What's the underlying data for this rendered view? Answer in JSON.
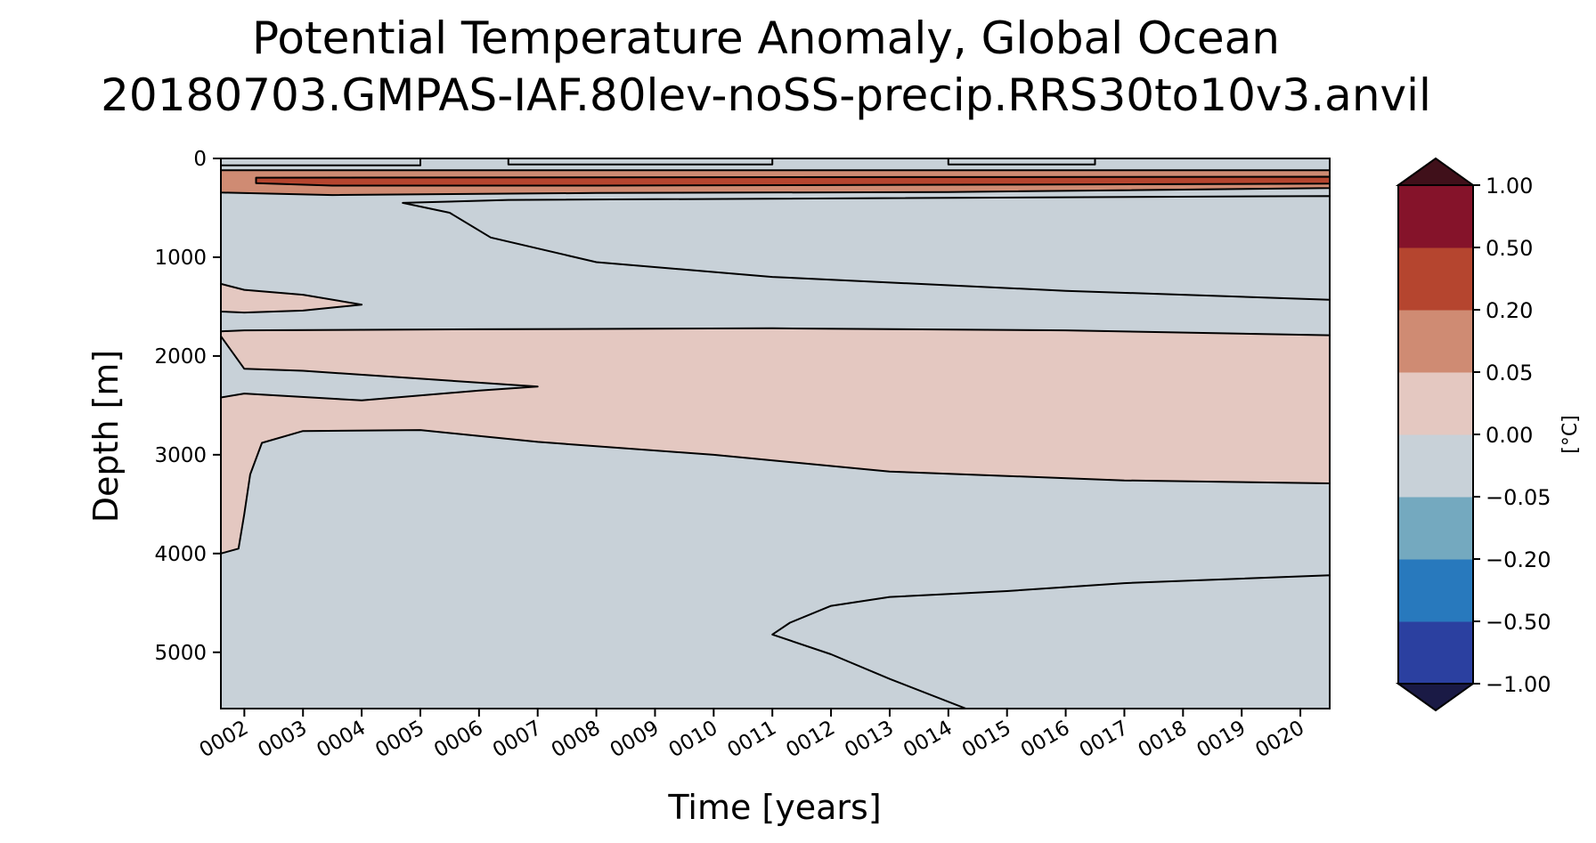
{
  "chart_data": {
    "type": "heatmap",
    "title": "Potential Temperature Anomaly, Global Ocean",
    "subtitle": "20180703.GMPAS-IAF.80lev-noSS-precip.RRS30to10v3.anvil",
    "xlabel": "Time [years]",
    "ylabel": "Depth [m]",
    "x_tick_labels": [
      "0002",
      "0003",
      "0004",
      "0005",
      "0006",
      "0007",
      "0008",
      "0009",
      "0010",
      "0011",
      "0012",
      "0013",
      "0014",
      "0015",
      "0016",
      "0017",
      "0018",
      "0019",
      "0020"
    ],
    "y_ticks": [
      0,
      1000,
      2000,
      3000,
      4000,
      5000
    ],
    "xlim": [
      1.6,
      20.5
    ],
    "ylim": [
      5570,
      0
    ],
    "colorbar": {
      "label": "[°C]",
      "extend": "both",
      "levels": [
        -1.0,
        -0.5,
        -0.2,
        -0.05,
        0.0,
        0.05,
        0.2,
        0.5,
        1.0
      ],
      "level_labels": [
        "−1.00",
        "−0.50",
        "−0.20",
        "−0.05",
        "0.00",
        "0.05",
        "0.20",
        "0.50",
        "1.00"
      ],
      "colors": [
        "#2b40a0",
        "#2879bd",
        "#74a9bf",
        "#c8d1d8",
        "#e4c8c1",
        "#cf8b73",
        "#b5452f",
        "#85132a"
      ],
      "under_color": "#1a1a45",
      "over_color": "#40101a"
    },
    "regions": [
      {
        "name": "surface-positive-band",
        "category": 0.05,
        "polygon": [
          [
            1.6,
            120
          ],
          [
            20.5,
            120
          ],
          [
            20.5,
            300
          ],
          [
            14,
            340
          ],
          [
            8,
            350
          ],
          [
            3.5,
            370
          ],
          [
            1.6,
            345
          ]
        ]
      },
      {
        "name": "near-surface-warm-core",
        "category": 0.2,
        "polygon": [
          [
            2.2,
            195
          ],
          [
            20.5,
            185
          ],
          [
            20.5,
            255
          ],
          [
            15,
            265
          ],
          [
            8,
            275
          ],
          [
            3.5,
            275
          ],
          [
            2.2,
            250
          ]
        ]
      },
      {
        "name": "surface-cool-patch-west",
        "category": -0.05,
        "polygon": [
          [
            1.6,
            0
          ],
          [
            5,
            0
          ],
          [
            5,
            70
          ],
          [
            1.6,
            70
          ]
        ]
      },
      {
        "name": "surface-cool-patch-mid",
        "category": -0.05,
        "polygon": [
          [
            6.5,
            0
          ],
          [
            11,
            0
          ],
          [
            11,
            60
          ],
          [
            6.5,
            60
          ]
        ]
      },
      {
        "name": "surface-cool-patch-east",
        "category": -0.05,
        "polygon": [
          [
            14,
            0
          ],
          [
            16.5,
            0
          ],
          [
            16.5,
            60
          ],
          [
            14,
            60
          ]
        ]
      },
      {
        "name": "deep-cool-upper",
        "category": -0.05,
        "polygon": [
          [
            4.7,
            450
          ],
          [
            6.5,
            420
          ],
          [
            20.5,
            380
          ],
          [
            20.5,
            1430
          ],
          [
            16,
            1340
          ],
          [
            11,
            1200
          ],
          [
            8,
            1050
          ],
          [
            6.2,
            800
          ],
          [
            5.5,
            550
          ]
        ]
      },
      {
        "name": "intermediate-warm-tongue",
        "category": 0.0,
        "polygon": [
          [
            1.6,
            1270
          ],
          [
            2,
            1330
          ],
          [
            3,
            1380
          ],
          [
            4,
            1480
          ],
          [
            3,
            1540
          ],
          [
            2,
            1560
          ],
          [
            1.6,
            1550
          ]
        ]
      },
      {
        "name": "mid-depth-warm-layer",
        "category": 0.0,
        "polygon": [
          [
            1.6,
            1750
          ],
          [
            2,
            1740
          ],
          [
            6,
            1730
          ],
          [
            11,
            1720
          ],
          [
            16,
            1740
          ],
          [
            20.5,
            1790
          ],
          [
            20.5,
            3290
          ],
          [
            17,
            3260
          ],
          [
            13,
            3170
          ],
          [
            10,
            3000
          ],
          [
            7,
            2870
          ],
          [
            5,
            2750
          ],
          [
            3,
            2760
          ],
          [
            2.3,
            2880
          ],
          [
            2.1,
            3200
          ],
          [
            2,
            3600
          ],
          [
            1.9,
            3950
          ],
          [
            1.6,
            4000
          ],
          [
            1.6,
            2420
          ],
          [
            2,
            2380
          ],
          [
            4,
            2450
          ],
          [
            6,
            2350
          ],
          [
            7,
            2310
          ],
          [
            5,
            2230
          ],
          [
            3,
            2150
          ],
          [
            2,
            2130
          ],
          [
            1.6,
            1800
          ]
        ]
      },
      {
        "name": "abyssal-cool-region",
        "category": -0.05,
        "polygon": [
          [
            11,
            4820
          ],
          [
            11.3,
            4700
          ],
          [
            12,
            4530
          ],
          [
            13,
            4440
          ],
          [
            15,
            4380
          ],
          [
            17,
            4300
          ],
          [
            20.5,
            4220
          ],
          [
            20.5,
            5570
          ],
          [
            14.3,
            5570
          ],
          [
            13,
            5270
          ],
          [
            12,
            5020
          ]
        ]
      }
    ]
  }
}
